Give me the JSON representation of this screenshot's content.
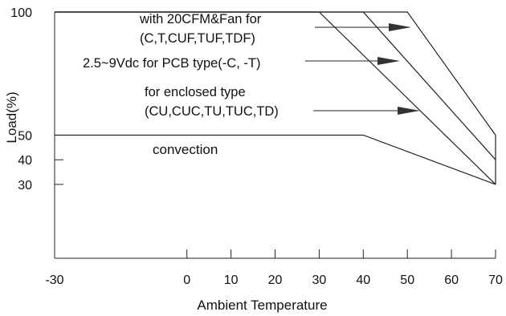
{
  "chart_data": {
    "type": "line",
    "xlabel": "Ambient Temperature",
    "ylabel": "Load(%)",
    "xlim": [
      -30,
      70
    ],
    "ylim": [
      0,
      100
    ],
    "x_ticks": [
      -30,
      0,
      10,
      20,
      30,
      40,
      50,
      60,
      70
    ],
    "y_ticks": [
      100,
      50,
      40,
      30
    ],
    "x_tick_labels": [
      "-30",
      "0",
      "10",
      "20",
      "30",
      "40",
      "50",
      "60",
      "70"
    ],
    "y_tick_labels": [
      "100",
      "50",
      "40",
      "30"
    ],
    "grid": false,
    "series": [
      {
        "name": "convection",
        "x": [
          -30,
          40,
          70
        ],
        "y": [
          50,
          50,
          30
        ]
      },
      {
        "name": "for enclosed type (CU,CUC,TU,TUC,TD)",
        "x": [
          -30,
          30,
          70
        ],
        "y": [
          100,
          100,
          30
        ]
      },
      {
        "name": "2.5~9Vdc for PCB type(-C, -T)",
        "x": [
          -30,
          40,
          70
        ],
        "y": [
          100,
          100,
          40
        ]
      },
      {
        "name": "with 20CFM&Fan for (C,T,CUF,TUF,TDF)",
        "x": [
          -30,
          50,
          70
        ],
        "y": [
          100,
          100,
          50
        ]
      }
    ],
    "annotations": [
      {
        "lines": [
          "with 20CFM&Fan for",
          "(C,T,CUF,TUF,TDF)"
        ],
        "points_to": "with 20CFM&Fan for (C,T,CUF,TUF,TDF)"
      },
      {
        "lines": [
          "2.5~9Vdc for PCB type(-C, -T)"
        ],
        "points_to": "2.5~9Vdc for PCB type(-C, -T)"
      },
      {
        "lines": [
          "for enclosed type",
          "(CU,CUC,TU,TUC,TD)"
        ],
        "points_to": "for enclosed type (CU,CUC,TU,TUC,TD)"
      },
      {
        "lines": [
          "convection"
        ],
        "points_to": "convection"
      }
    ]
  }
}
